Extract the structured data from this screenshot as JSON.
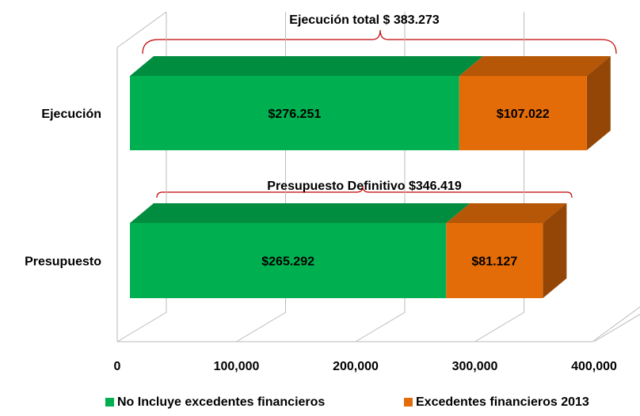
{
  "chart_data": {
    "type": "bar",
    "orientation": "horizontal",
    "stacked": true,
    "categories": [
      "Ejecución",
      "Presupuesto"
    ],
    "series": [
      {
        "name": "No Incluye excedentes financieros",
        "color": "#00b050",
        "values": [
          276251,
          265292
        ],
        "value_labels": [
          "$276.251",
          "$265.292"
        ]
      },
      {
        "name": "Excedentes financieros 2013",
        "color": "#e36c09",
        "values": [
          107022,
          81127
        ],
        "value_labels": [
          "$107.022",
          "$81.127"
        ]
      }
    ],
    "annotations": [
      "Ejecución total $ 383.273",
      "Presupuesto Definitivo $346.419"
    ],
    "xlim": [
      0,
      400000
    ],
    "xticks": [
      0,
      {
        "value": 100000,
        "label": "100,000"
      },
      {
        "value": 200000,
        "label": "200,000"
      },
      {
        "value": 300000,
        "label": "300,000"
      },
      {
        "value": 400000,
        "label": "400,000"
      }
    ],
    "grid": true,
    "legend": "bottom"
  }
}
